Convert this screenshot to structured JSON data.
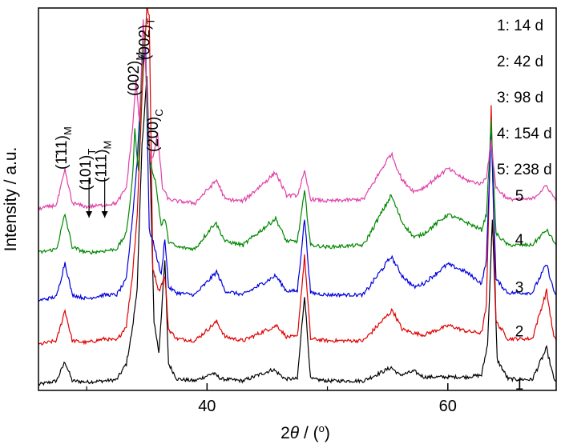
{
  "chart_data": {
    "type": "line",
    "xlabel": "2θ / (°)",
    "xlabel_parts": {
      "sym": "2",
      "theta": "θ",
      "unit": " / (",
      "deg": "o",
      "close": ")"
    },
    "ylabel": "Intensity / a.u.",
    "xlim": [
      26,
      69
    ],
    "ylim": [
      0,
      10
    ],
    "x_ticks": [
      40,
      60
    ],
    "x_minor_ticks": [
      30,
      50
    ],
    "y_tick_labels": false,
    "grid": false,
    "legend": {
      "placement": "top-right",
      "entries": [
        "1: 14 d",
        "2: 42 d",
        "3: 98 d",
        "4: 154 d",
        "5: 238 d"
      ]
    },
    "peak_annotations": [
      {
        "main": "(1̄11)",
        "sub": "M",
        "x": 28.2
      },
      {
        "main": "(101)",
        "sub": "T",
        "x": 30.2
      },
      {
        "main": "(111)",
        "sub": "M",
        "x": 31.5
      },
      {
        "main": "(002)",
        "sub": "M",
        "x": 34.2
      },
      {
        "main": "(002)",
        "sub": "T",
        "x": 35.1
      },
      {
        "main": "(200)",
        "sub": "C",
        "x": 35.8
      }
    ],
    "series": [
      {
        "label": "1",
        "color": "#000000",
        "baseline": 0.15,
        "points": [
          [
            26,
            0.15
          ],
          [
            27.5,
            0.25
          ],
          [
            28.2,
            0.75
          ],
          [
            28.8,
            0.25
          ],
          [
            30,
            0.22
          ],
          [
            31.5,
            0.25
          ],
          [
            32.5,
            0.28
          ],
          [
            33.3,
            0.7
          ],
          [
            33.8,
            1.6
          ],
          [
            34.2,
            2.7
          ],
          [
            34.6,
            6.4
          ],
          [
            35.0,
            8.2
          ],
          [
            35.3,
            5.5
          ],
          [
            35.6,
            1.8
          ],
          [
            36.0,
            1.0
          ],
          [
            36.5,
            3.4
          ],
          [
            36.8,
            0.7
          ],
          [
            37.5,
            0.3
          ],
          [
            39,
            0.25
          ],
          [
            40.5,
            0.45
          ],
          [
            41.2,
            0.3
          ],
          [
            43,
            0.25
          ],
          [
            45.5,
            0.55
          ],
          [
            46.5,
            0.3
          ],
          [
            47.5,
            0.3
          ],
          [
            48.1,
            2.5
          ],
          [
            48.6,
            0.3
          ],
          [
            50,
            0.25
          ],
          [
            53,
            0.25
          ],
          [
            55.3,
            0.6
          ],
          [
            56,
            0.4
          ],
          [
            57.2,
            0.5
          ],
          [
            58,
            0.35
          ],
          [
            60,
            0.35
          ],
          [
            61.5,
            0.35
          ],
          [
            62.8,
            0.4
          ],
          [
            63.3,
            1.2
          ],
          [
            63.7,
            4.5
          ],
          [
            64.1,
            0.8
          ],
          [
            65,
            0.3
          ],
          [
            67,
            0.28
          ],
          [
            68.2,
            1.1
          ],
          [
            68.8,
            0.3
          ],
          [
            69,
            0.25
          ]
        ]
      },
      {
        "label": "2",
        "color": "#e00000",
        "baseline": 1.2,
        "points": [
          [
            26,
            1.2
          ],
          [
            27.5,
            1.3
          ],
          [
            28.2,
            2.1
          ],
          [
            28.8,
            1.3
          ],
          [
            30,
            1.25
          ],
          [
            31.5,
            1.35
          ],
          [
            32.5,
            1.3
          ],
          [
            33.3,
            1.7
          ],
          [
            33.8,
            3.0
          ],
          [
            34.2,
            4.6
          ],
          [
            34.6,
            7.7
          ],
          [
            35.0,
            10.0
          ],
          [
            35.2,
            9.8
          ],
          [
            35.5,
            3.2
          ],
          [
            36.0,
            2.6
          ],
          [
            36.5,
            3.0
          ],
          [
            36.8,
            1.6
          ],
          [
            37.5,
            1.35
          ],
          [
            39,
            1.3
          ],
          [
            40.8,
            1.8
          ],
          [
            41.5,
            1.4
          ],
          [
            43,
            1.3
          ],
          [
            45.8,
            1.7
          ],
          [
            46.6,
            1.4
          ],
          [
            47.5,
            1.4
          ],
          [
            48.1,
            3.5
          ],
          [
            48.6,
            1.35
          ],
          [
            50,
            1.3
          ],
          [
            53,
            1.3
          ],
          [
            55.4,
            2.1
          ],
          [
            56.2,
            1.6
          ],
          [
            57.2,
            1.5
          ],
          [
            58,
            1.45
          ],
          [
            60.1,
            1.7
          ],
          [
            61.5,
            1.55
          ],
          [
            62.8,
            1.5
          ],
          [
            63.2,
            2.2
          ],
          [
            63.6,
            7.4
          ],
          [
            64.0,
            1.8
          ],
          [
            65,
            1.35
          ],
          [
            67,
            1.35
          ],
          [
            68.2,
            2.6
          ],
          [
            68.8,
            1.4
          ],
          [
            69,
            1.3
          ]
        ]
      },
      {
        "label": "3",
        "color": "#0000dd",
        "baseline": 2.35,
        "points": [
          [
            26,
            2.35
          ],
          [
            27.5,
            2.45
          ],
          [
            28.2,
            3.35
          ],
          [
            28.8,
            2.5
          ],
          [
            30,
            2.4
          ],
          [
            31.5,
            2.5
          ],
          [
            32.5,
            2.5
          ],
          [
            33.3,
            2.9
          ],
          [
            33.8,
            4.5
          ],
          [
            34.2,
            6.0
          ],
          [
            34.6,
            8.4
          ],
          [
            34.9,
            9.0
          ],
          [
            35.2,
            4.2
          ],
          [
            35.6,
            3.8
          ],
          [
            36.2,
            3.0
          ],
          [
            36.5,
            4.0
          ],
          [
            36.8,
            2.7
          ],
          [
            37.5,
            2.55
          ],
          [
            39,
            2.5
          ],
          [
            40.8,
            3.1
          ],
          [
            41.5,
            2.6
          ],
          [
            43,
            2.5
          ],
          [
            45.7,
            3.0
          ],
          [
            46.6,
            2.6
          ],
          [
            47.5,
            2.6
          ],
          [
            48.1,
            4.5
          ],
          [
            48.6,
            2.55
          ],
          [
            50,
            2.5
          ],
          [
            53,
            2.5
          ],
          [
            55.3,
            3.5
          ],
          [
            56.2,
            3.0
          ],
          [
            57.2,
            2.7
          ],
          [
            58,
            2.8
          ],
          [
            60,
            3.3
          ],
          [
            61.5,
            3.1
          ],
          [
            62.8,
            2.8
          ],
          [
            63.2,
            3.4
          ],
          [
            63.6,
            6.8
          ],
          [
            64.0,
            2.9
          ],
          [
            65,
            2.55
          ],
          [
            67,
            2.55
          ],
          [
            68.2,
            3.3
          ],
          [
            68.8,
            2.6
          ],
          [
            69,
            2.5
          ]
        ]
      },
      {
        "label": "4",
        "color": "#008800",
        "baseline": 3.6,
        "points": [
          [
            26,
            3.6
          ],
          [
            27.5,
            3.7
          ],
          [
            28.2,
            4.6
          ],
          [
            28.8,
            3.75
          ],
          [
            30,
            3.6
          ],
          [
            31.5,
            3.65
          ],
          [
            32.5,
            3.7
          ],
          [
            33.3,
            4.1
          ],
          [
            33.8,
            5.5
          ],
          [
            34.0,
            6.8
          ],
          [
            34.3,
            5.8
          ],
          [
            34.6,
            8.3
          ],
          [
            34.8,
            9.4
          ],
          [
            35.1,
            6.6
          ],
          [
            35.4,
            5.8
          ],
          [
            35.7,
            5.5
          ],
          [
            36.2,
            4.3
          ],
          [
            36.5,
            4.5
          ],
          [
            36.8,
            3.9
          ],
          [
            37.5,
            3.75
          ],
          [
            39,
            3.7
          ],
          [
            40.7,
            4.4
          ],
          [
            41.5,
            3.9
          ],
          [
            43,
            3.8
          ],
          [
            45.7,
            4.5
          ],
          [
            46.6,
            3.9
          ],
          [
            47.5,
            3.9
          ],
          [
            48.1,
            5.2
          ],
          [
            48.6,
            3.8
          ],
          [
            50,
            3.75
          ],
          [
            53,
            3.8
          ],
          [
            55.3,
            5.1
          ],
          [
            56.2,
            4.4
          ],
          [
            57.2,
            4.0
          ],
          [
            58,
            4.1
          ],
          [
            60,
            4.6
          ],
          [
            61.5,
            4.4
          ],
          [
            62.8,
            4.2
          ],
          [
            63.2,
            4.6
          ],
          [
            63.6,
            7.0
          ],
          [
            64.0,
            4.1
          ],
          [
            65,
            3.8
          ],
          [
            67,
            3.8
          ],
          [
            68.2,
            4.2
          ],
          [
            68.8,
            3.9
          ],
          [
            69,
            3.8
          ]
        ]
      },
      {
        "label": "5",
        "color": "#e040a8",
        "baseline": 4.75,
        "points": [
          [
            26,
            4.75
          ],
          [
            27.5,
            4.85
          ],
          [
            28.2,
            5.75
          ],
          [
            28.8,
            4.9
          ],
          [
            30,
            4.8
          ],
          [
            31.5,
            4.85
          ],
          [
            32.5,
            4.9
          ],
          [
            33.3,
            5.3
          ],
          [
            33.8,
            6.8
          ],
          [
            34.1,
            8.1
          ],
          [
            34.4,
            7.0
          ],
          [
            34.7,
            9.7
          ],
          [
            35.0,
            7.8
          ],
          [
            35.3,
            6.0
          ],
          [
            35.6,
            6.2
          ],
          [
            35.9,
            6.7
          ],
          [
            36.3,
            5.3
          ],
          [
            36.8,
            5.0
          ],
          [
            37.5,
            4.95
          ],
          [
            39,
            4.9
          ],
          [
            40.8,
            5.5
          ],
          [
            41.5,
            5.0
          ],
          [
            43,
            4.95
          ],
          [
            45.7,
            5.7
          ],
          [
            46.6,
            5.1
          ],
          [
            47.5,
            5.1
          ],
          [
            48.1,
            5.7
          ],
          [
            48.6,
            5.0
          ],
          [
            50,
            4.95
          ],
          [
            53,
            5.0
          ],
          [
            55.3,
            6.2
          ],
          [
            56.2,
            5.5
          ],
          [
            57.2,
            5.2
          ],
          [
            58,
            5.3
          ],
          [
            60,
            5.8
          ],
          [
            61.5,
            5.5
          ],
          [
            62.8,
            5.4
          ],
          [
            63.2,
            5.6
          ],
          [
            63.6,
            6.5
          ],
          [
            64.0,
            5.3
          ],
          [
            65,
            5.0
          ],
          [
            67,
            5.0
          ],
          [
            68.2,
            5.35
          ],
          [
            68.8,
            5.05
          ],
          [
            69,
            5.0
          ]
        ]
      }
    ]
  }
}
